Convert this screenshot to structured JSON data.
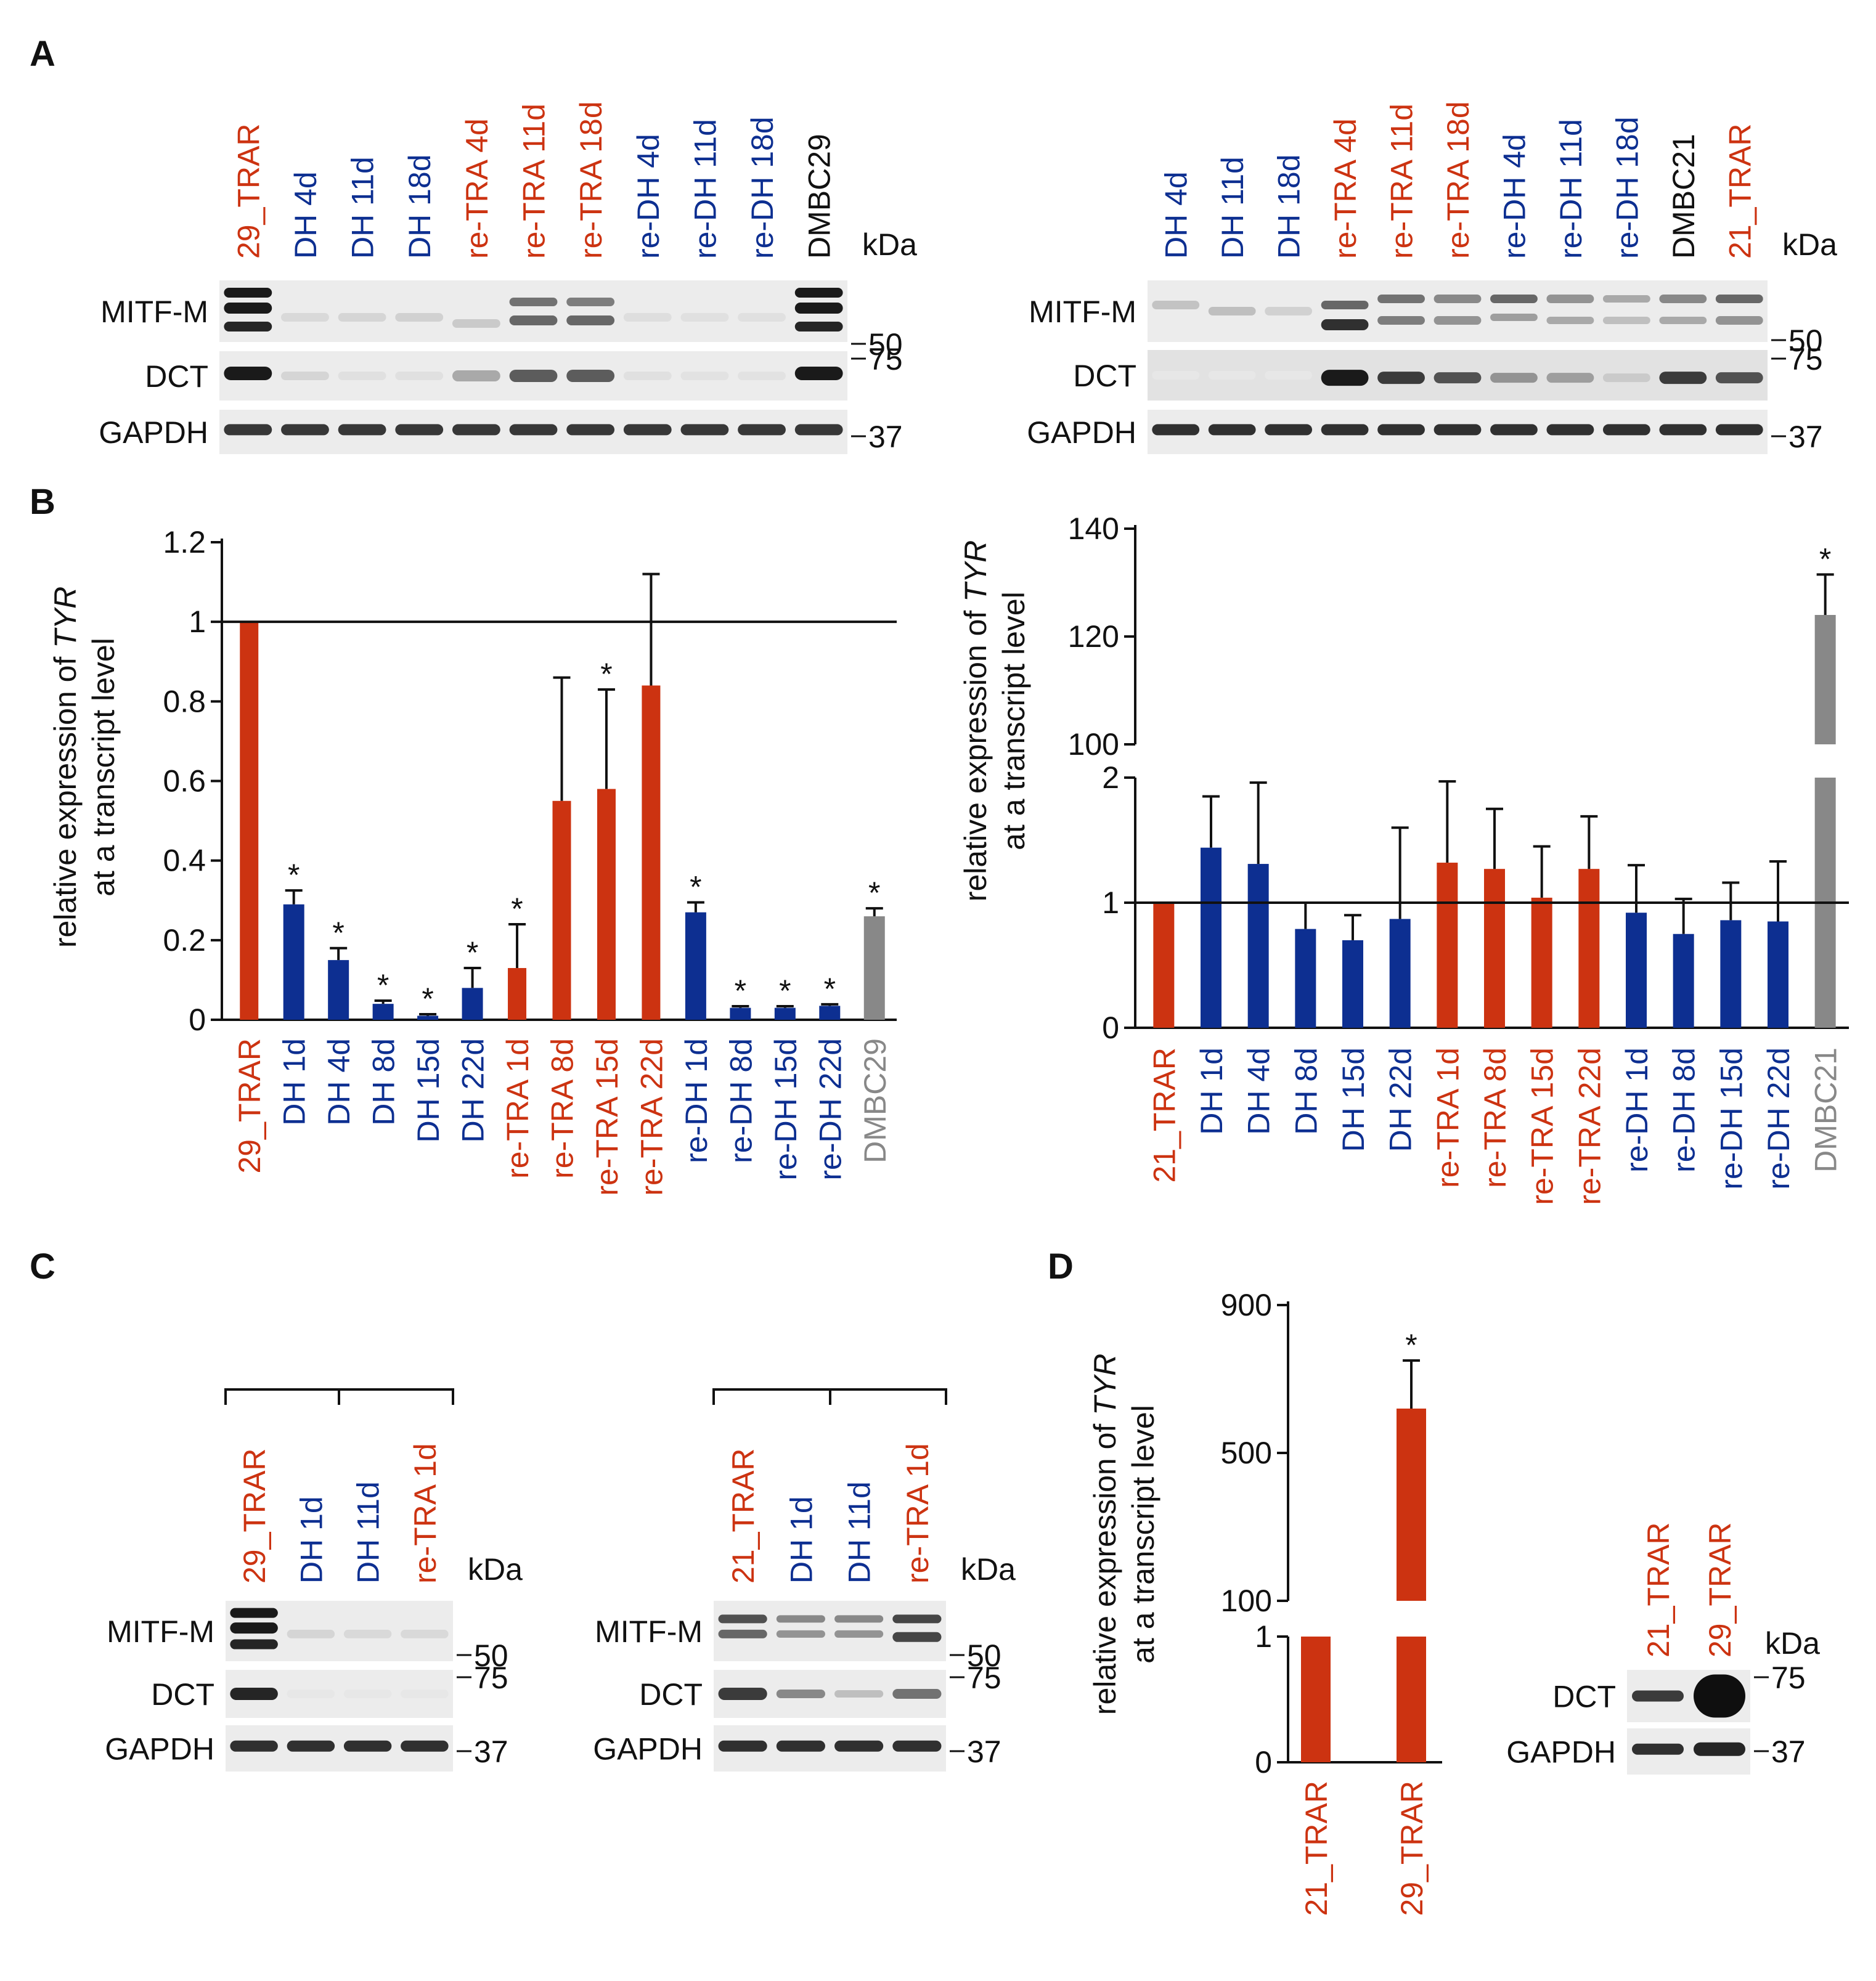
{
  "colors": {
    "red": "#cc3311",
    "blue": "#0d2f91",
    "gray": "#888888",
    "black": "#111111"
  },
  "panel_labels": {
    "a": "A",
    "b": "B",
    "c": "C",
    "d": "D"
  },
  "common": {
    "kda": "kDa",
    "markers": {
      "m50": "50",
      "m75": "75",
      "m37": "37"
    },
    "proteins": {
      "mitf": "MITF-M",
      "dct": "DCT",
      "gapdh": "GAPDH"
    },
    "ylabel_pre": "relative expression of ",
    "ylabel_gene": "TYR",
    "ylabel_line2": "at a transcript level"
  },
  "blots": {
    "a_left": {
      "lanes": [
        "29_TRAR",
        "DH 4d",
        "DH 11d",
        "DH 18d",
        "re-TRA 4d",
        "re-TRA 11d",
        "re-TRA 18d",
        "re-DH 4d",
        "re-DH 11d",
        "re-DH 18d",
        "DMBC29"
      ],
      "lane_colors": [
        "red",
        "blue",
        "blue",
        "blue",
        "red",
        "red",
        "red",
        "blue",
        "blue",
        "blue",
        "black"
      ]
    },
    "a_right": {
      "lanes": [
        "DH 4d",
        "DH 11d",
        "DH 18d",
        "re-TRA 4d",
        "re-TRA 11d",
        "re-TRA 18d",
        "re-DH 4d",
        "re-DH 11d",
        "re-DH 18d",
        "DMBC21",
        "21_TRAR"
      ],
      "lane_colors": [
        "blue",
        "blue",
        "blue",
        "red",
        "red",
        "red",
        "blue",
        "blue",
        "blue",
        "black",
        "red"
      ]
    },
    "c_left": {
      "lanes": [
        "29_TRAR",
        "DH 1d",
        "DH 11d",
        "re-TRA 1d"
      ],
      "lane_colors": [
        "red",
        "blue",
        "blue",
        "red"
      ]
    },
    "c_right": {
      "lanes": [
        "21_TRAR",
        "DH 1d",
        "DH 11d",
        "re-TRA 1d"
      ],
      "lane_colors": [
        "red",
        "blue",
        "blue",
        "red"
      ]
    },
    "d": {
      "lanes": [
        "21_TRAR",
        "29_TRAR"
      ],
      "lane_colors": [
        "red",
        "red"
      ]
    }
  },
  "chart_data": [
    {
      "id": "B-left",
      "type": "bar",
      "title": "",
      "ylabel": "relative expression of TYR at a transcript level",
      "ylim": [
        0,
        1.2
      ],
      "yticks": [
        "0",
        "0.2",
        "0.4",
        "0.6",
        "0.8",
        "1",
        "1.2"
      ],
      "reference_line": 1,
      "categories": [
        "29_TRAR",
        "DH 1d",
        "DH 4d",
        "DH 8d",
        "DH 15d",
        "DH 22d",
        "re-TRA 1d",
        "re-TRA 8d",
        "re-TRA 15d",
        "re-TRA 22d",
        "re-DH 1d",
        "re-DH 8d",
        "re-DH 15d",
        "re-DH 22d",
        "DMBC29"
      ],
      "values": [
        1.0,
        0.29,
        0.15,
        0.04,
        0.01,
        0.08,
        0.13,
        0.55,
        0.58,
        0.84,
        0.27,
        0.03,
        0.03,
        0.035,
        0.26
      ],
      "errors": [
        0.0,
        0.035,
        0.03,
        0.008,
        0.004,
        0.05,
        0.11,
        0.31,
        0.25,
        0.28,
        0.025,
        0.004,
        0.004,
        0.004,
        0.02
      ],
      "significant": [
        false,
        true,
        true,
        true,
        true,
        true,
        true,
        false,
        true,
        false,
        true,
        true,
        true,
        true,
        true
      ],
      "bar_colors": [
        "red",
        "blue",
        "blue",
        "blue",
        "blue",
        "blue",
        "red",
        "red",
        "red",
        "red",
        "blue",
        "blue",
        "blue",
        "blue",
        "gray"
      ]
    },
    {
      "id": "B-right",
      "type": "bar",
      "title": "",
      "ylabel": "relative expression of TYR at a transcript level",
      "axis_break": true,
      "lower_ylim": [
        0,
        2
      ],
      "lower_yticks": [
        "0",
        "1",
        "2"
      ],
      "upper_ylim": [
        100,
        140
      ],
      "upper_yticks": [
        "100",
        "120",
        "140"
      ],
      "reference_line": 1,
      "categories": [
        "21_TRAR",
        "DH 1d",
        "DH 4d",
        "DH 8d",
        "DH 15d",
        "DH 22d",
        "re-TRA 1d",
        "re-TRA 8d",
        "re-TRA 15d",
        "re-TRA 22d",
        "re-DH 1d",
        "re-DH 8d",
        "re-DH 15d",
        "re-DH 22d",
        "DMBC21"
      ],
      "values": [
        1.0,
        1.44,
        1.31,
        0.79,
        0.7,
        0.87,
        1.32,
        1.27,
        1.04,
        1.27,
        0.92,
        0.75,
        0.86,
        0.85,
        124
      ],
      "errors": [
        0.0,
        0.41,
        0.65,
        0.21,
        0.2,
        0.73,
        0.65,
        0.48,
        0.41,
        0.42,
        0.38,
        0.28,
        0.3,
        0.48,
        7.5
      ],
      "significant": [
        false,
        false,
        false,
        false,
        false,
        false,
        false,
        false,
        false,
        false,
        false,
        false,
        false,
        false,
        true
      ],
      "bar_colors": [
        "red",
        "blue",
        "blue",
        "blue",
        "blue",
        "blue",
        "red",
        "red",
        "red",
        "red",
        "blue",
        "blue",
        "blue",
        "blue",
        "gray"
      ]
    },
    {
      "id": "D",
      "type": "bar",
      "title": "",
      "ylabel": "relative expression of TYR at a transcript level",
      "axis_break": true,
      "lower_ylim": [
        0,
        1
      ],
      "lower_yticks": [
        "0",
        "1"
      ],
      "upper_ylim": [
        100,
        900
      ],
      "upper_yticks": [
        "100",
        "500",
        "900"
      ],
      "categories": [
        "21_TRAR",
        "29_TRAR"
      ],
      "values": [
        1.0,
        620
      ],
      "errors": [
        0.0,
        130
      ],
      "significant": [
        false,
        true
      ],
      "bar_colors": [
        "red",
        "red"
      ]
    }
  ]
}
